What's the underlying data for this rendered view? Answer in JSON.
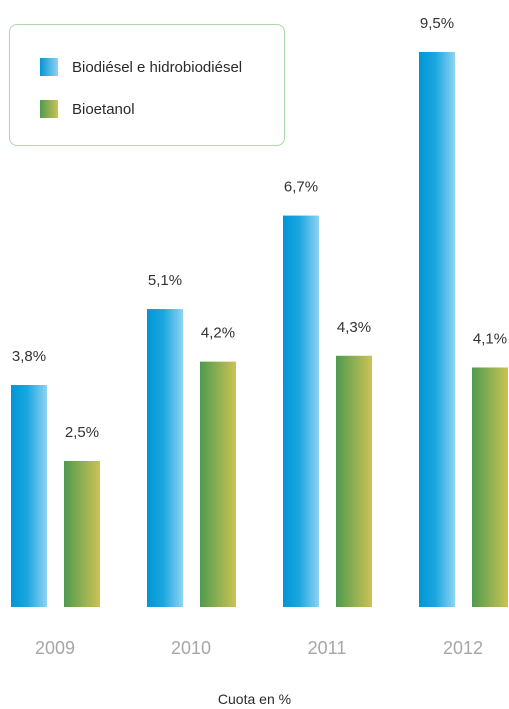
{
  "chart_data": {
    "type": "bar",
    "categories": [
      "2009",
      "2010",
      "2011",
      "2012"
    ],
    "series": [
      {
        "name": "Biodiésel e hidrobiodiésel",
        "values": [
          3.8,
          5.1,
          6.7,
          9.5
        ],
        "labels": [
          "3,8%",
          "5,1%",
          "6,7%",
          "9,5%"
        ]
      },
      {
        "name": "Bioetanol",
        "values": [
          2.5,
          4.2,
          4.3,
          4.1
        ],
        "labels": [
          "2,5%",
          "4,2%",
          "4,3%",
          "4,1%"
        ]
      }
    ],
    "ylim": [
      0,
      9.5
    ],
    "grid": false,
    "legend_position": "top-left",
    "colors": {
      "series_0": [
        "#0096d6",
        "#86d0f0"
      ],
      "series_1": [
        "#4f9a4f",
        "#c8c050"
      ],
      "category_text": "#a6a6a6",
      "value_text": "#333333",
      "legend_border": "#a9d8a9"
    }
  },
  "footer": "Cuota en %"
}
